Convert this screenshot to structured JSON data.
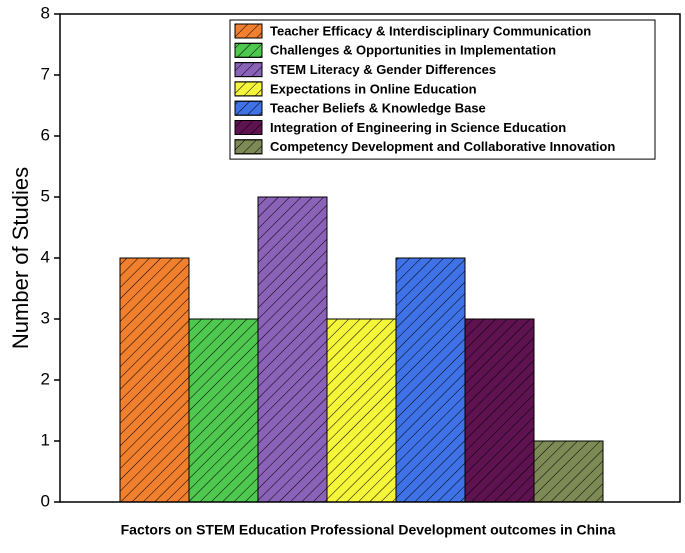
{
  "chart_data": {
    "type": "bar",
    "x_label": "Factors on STEM Education Professional Development outcomes in China",
    "y_label": "Number of Studies",
    "series": [
      {
        "name": "Teacher Efficacy & Interdisciplinary Communication",
        "color": "#f07f2e",
        "values": [
          4
        ]
      },
      {
        "name": "Challenges & Opportunities in Implementation",
        "color": "#4fc84f",
        "values": [
          3
        ]
      },
      {
        "name": "STEM Literacy & Gender Differences",
        "color": "#8a62b8",
        "values": [
          5
        ]
      },
      {
        "name": "Expectations in Online Education",
        "color": "#f5f53a",
        "values": [
          3
        ]
      },
      {
        "name": "Teacher Beliefs & Knowledge Base",
        "color": "#3f72e6",
        "values": [
          4
        ]
      },
      {
        "name": "Integration of Engineering in Science Education",
        "color": "#5e1250",
        "values": [
          3
        ]
      },
      {
        "name": "Competency Development and Collaborative Innovation",
        "color": "#7d8a55",
        "values": [
          1
        ]
      }
    ],
    "ylim": [
      0,
      8
    ],
    "yticks": [
      0,
      1,
      2,
      3,
      4,
      5,
      6,
      7,
      8
    ],
    "legend": "upper right"
  }
}
